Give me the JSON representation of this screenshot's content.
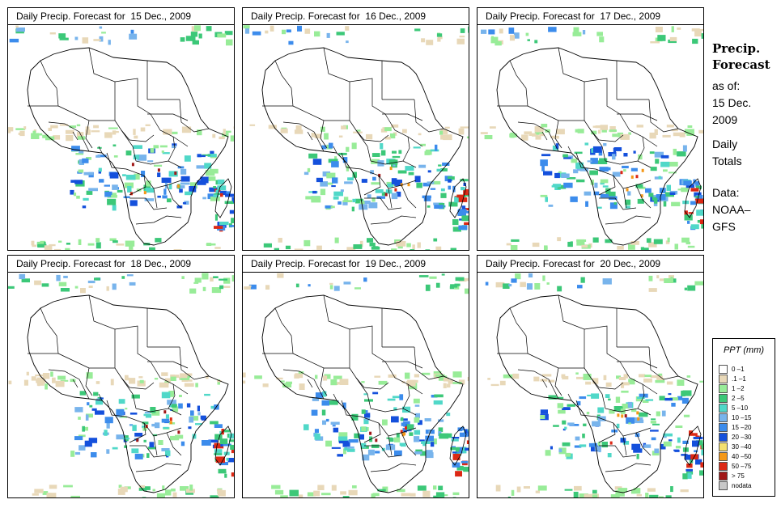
{
  "panels": [
    {
      "title_prefix": "Daily Precip. Forecast for",
      "date": "15 Dec., 2009"
    },
    {
      "title_prefix": "Daily Precip. Forecast for",
      "date": "16 Dec., 2009"
    },
    {
      "title_prefix": "Daily Precip. Forecast for",
      "date": "17 Dec., 2009"
    },
    {
      "title_prefix": "Daily Precip. Forecast for",
      "date": "18 Dec., 2009"
    },
    {
      "title_prefix": "Daily Precip. Forecast for",
      "date": "19 Dec., 2009"
    },
    {
      "title_prefix": "Daily Precip. Forecast for",
      "date": "20 Dec., 2009"
    }
  ],
  "side": {
    "title_line1": "Precip.",
    "title_line2": "Forecast",
    "asof_line1": "as of:",
    "asof_line2": "15 Dec.",
    "asof_line3": "2009",
    "daily_line1": "Daily",
    "daily_line2": "Totals",
    "data_line1": "Data:",
    "data_line2": "NOAA–",
    "data_line3": "GFS"
  },
  "legend": {
    "title": "PPT (mm)",
    "items": [
      {
        "label": "0 –1",
        "color": "#ffffff"
      },
      {
        "label": ".1 –1",
        "color": "#e8d8b8"
      },
      {
        "label": "1 –2",
        "color": "#98ec98"
      },
      {
        "label": "2 –5",
        "color": "#3cc878"
      },
      {
        "label": "5 –10",
        "color": "#50d8c8"
      },
      {
        "label": "10 –15",
        "color": "#78b4ec"
      },
      {
        "label": "15 –20",
        "color": "#3c8cec"
      },
      {
        "label": "20 –30",
        "color": "#1450dc"
      },
      {
        "label": "30 –40",
        "color": "#f4e070"
      },
      {
        "label": "40 –50",
        "color": "#f49818"
      },
      {
        "label": "50 –75",
        "color": "#dc2814"
      },
      {
        "label": "> 75",
        "color": "#a01818"
      },
      {
        "label": "nodata",
        "color": "#c8c8c8"
      }
    ]
  }
}
